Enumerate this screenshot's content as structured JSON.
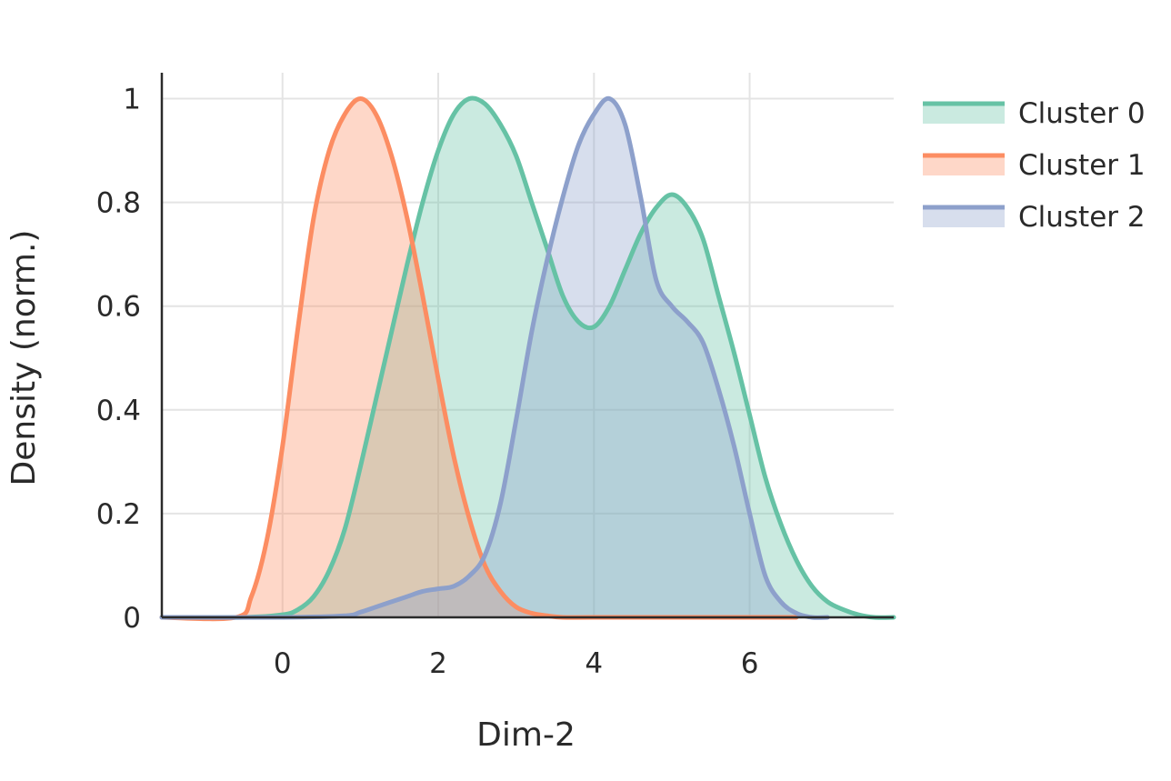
{
  "chart_data": {
    "type": "area",
    "title": "",
    "xlabel": "Dim-2",
    "ylabel": "Density (norm.)",
    "xlim": [
      -1.55,
      7.85
    ],
    "ylim": [
      0,
      1.05
    ],
    "x_ticks": [
      0,
      2,
      4,
      6
    ],
    "x_tick_labels": [
      "0",
      "2",
      "4",
      "6"
    ],
    "y_ticks": [
      0,
      0.2,
      0.4,
      0.6,
      0.8,
      1
    ],
    "y_tick_labels": [
      "0",
      "0.2",
      "0.4",
      "0.6",
      "0.8",
      "1"
    ],
    "grid": true,
    "legend_position": "top-right, outside plot",
    "series": [
      {
        "name": "Cluster 0",
        "color": "#66c2a5",
        "x": [
          -1.55,
          -0.5,
          0,
          0.2,
          0.4,
          0.6,
          0.8,
          1.0,
          1.2,
          1.4,
          1.6,
          1.8,
          2.0,
          2.2,
          2.4,
          2.6,
          2.8,
          3.0,
          3.2,
          3.4,
          3.6,
          3.8,
          4.0,
          4.2,
          4.4,
          4.6,
          4.8,
          5.0,
          5.2,
          5.4,
          5.6,
          5.8,
          6.0,
          6.2,
          6.4,
          6.6,
          6.8,
          7.0,
          7.2,
          7.4,
          7.6,
          7.85
        ],
        "y": [
          0,
          0,
          0.005,
          0.015,
          0.04,
          0.09,
          0.17,
          0.29,
          0.42,
          0.55,
          0.68,
          0.8,
          0.9,
          0.97,
          1.0,
          0.99,
          0.95,
          0.89,
          0.8,
          0.71,
          0.62,
          0.57,
          0.56,
          0.6,
          0.67,
          0.74,
          0.79,
          0.815,
          0.79,
          0.73,
          0.62,
          0.51,
          0.39,
          0.27,
          0.18,
          0.11,
          0.06,
          0.03,
          0.015,
          0.005,
          0,
          0
        ]
      },
      {
        "name": "Cluster 1",
        "color": "#fc8d62",
        "x": [
          -1.55,
          -0.6,
          -0.4,
          -0.2,
          0,
          0.2,
          0.4,
          0.6,
          0.8,
          1.0,
          1.2,
          1.4,
          1.6,
          1.8,
          2.0,
          2.2,
          2.4,
          2.6,
          2.8,
          3.0,
          3.2,
          3.4,
          3.6,
          4.0,
          5.0,
          6.0,
          6.6
        ],
        "y": [
          0,
          0,
          0.04,
          0.15,
          0.33,
          0.56,
          0.77,
          0.9,
          0.97,
          1.0,
          0.97,
          0.89,
          0.77,
          0.62,
          0.46,
          0.31,
          0.19,
          0.1,
          0.05,
          0.02,
          0.008,
          0.003,
          0,
          0,
          0,
          0,
          0
        ]
      },
      {
        "name": "Cluster 2",
        "color": "#8da0cb",
        "x": [
          -1.55,
          0,
          0.8,
          1.0,
          1.2,
          1.4,
          1.6,
          1.8,
          2.0,
          2.2,
          2.4,
          2.6,
          2.8,
          3.0,
          3.2,
          3.4,
          3.6,
          3.8,
          4.0,
          4.2,
          4.4,
          4.6,
          4.8,
          5.0,
          5.2,
          5.4,
          5.6,
          5.8,
          6.0,
          6.2,
          6.4,
          6.6,
          6.8,
          7.0
        ],
        "y": [
          0,
          0,
          0.003,
          0.01,
          0.02,
          0.03,
          0.04,
          0.05,
          0.055,
          0.06,
          0.08,
          0.12,
          0.22,
          0.38,
          0.55,
          0.69,
          0.81,
          0.91,
          0.97,
          1.0,
          0.95,
          0.81,
          0.65,
          0.6,
          0.57,
          0.53,
          0.44,
          0.33,
          0.2,
          0.08,
          0.03,
          0.008,
          0,
          0
        ]
      }
    ]
  }
}
